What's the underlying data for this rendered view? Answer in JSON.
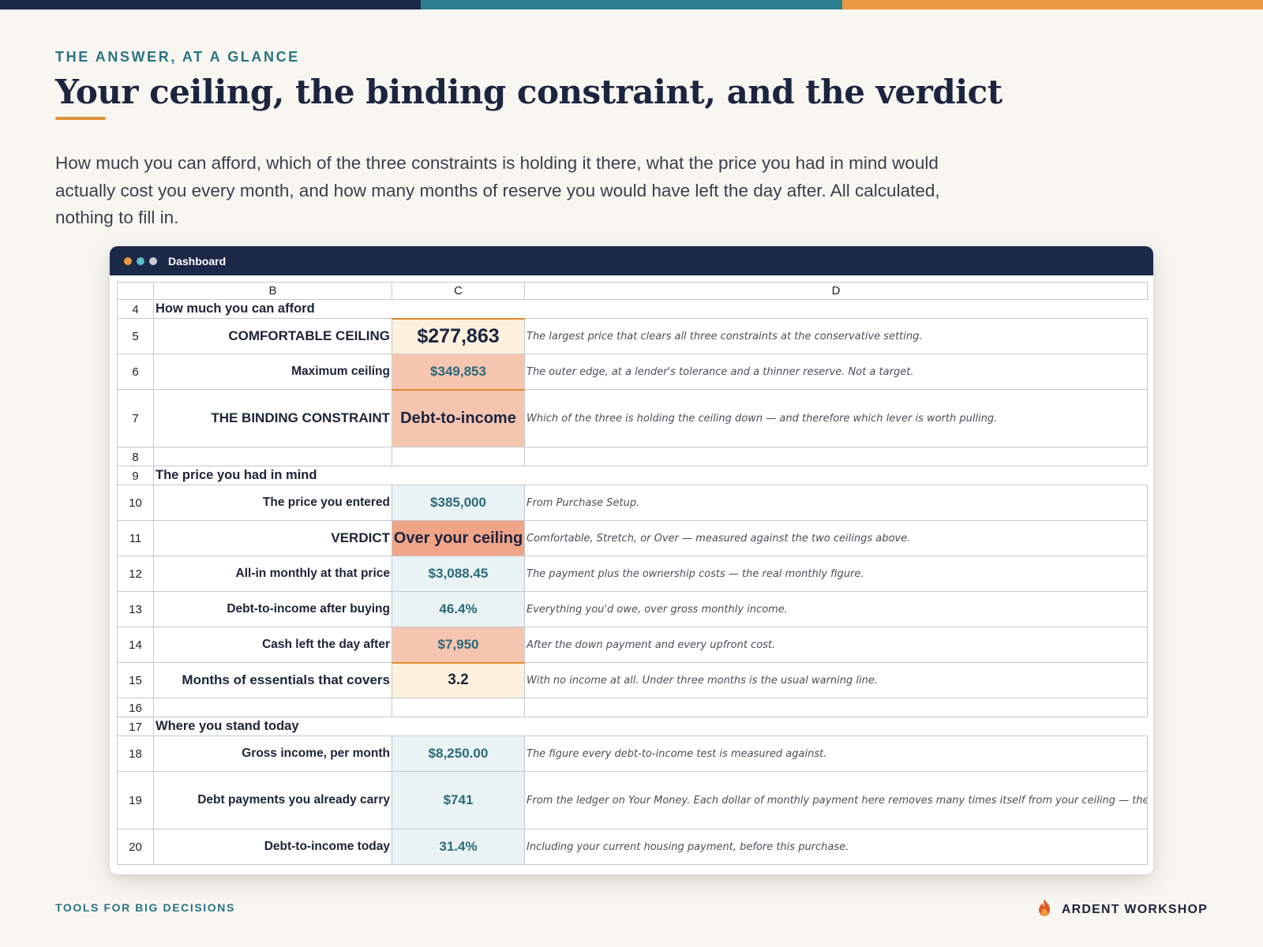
{
  "header": {
    "eyebrow": "THE ANSWER, AT A GLANCE",
    "title": "Your ceiling, the binding constraint, and the verdict",
    "intro": "How much you can afford, which of the three constraints is holding it there, what the price you had in mind would actually cost you every month, and how many months of reserve you would have left the day after. All calculated, nothing to fill in."
  },
  "window": {
    "title": "Dashboard",
    "dot_colors": [
      "#ec9a3f",
      "#5bbfc9",
      "#c9ccd6"
    ]
  },
  "sheet": {
    "columns": [
      "B",
      "C",
      "D"
    ],
    "rows": {
      "r4": {
        "num": "4",
        "section": "How much you can afford"
      },
      "r5": {
        "num": "5",
        "label": "COMFORTABLE CEILING",
        "value": "$277,863",
        "note": "The largest price that clears all three constraints at the conservative setting."
      },
      "r6": {
        "num": "6",
        "label": "Maximum ceiling",
        "value": "$349,853",
        "note": "The outer edge, at a lender's tolerance and a thinner reserve. Not a target."
      },
      "r7": {
        "num": "7",
        "label": "THE BINDING CONSTRAINT",
        "value": "Debt-to-income",
        "note": "Which of the three is holding the ceiling down — and therefore which lever is worth pulling."
      },
      "r8": {
        "num": "8"
      },
      "r9": {
        "num": "9",
        "section": "The price you had in mind"
      },
      "r10": {
        "num": "10",
        "label": "The price you entered",
        "value": "$385,000",
        "note": "From Purchase Setup."
      },
      "r11": {
        "num": "11",
        "label": "VERDICT",
        "value": "Over your ceiling",
        "note": "Comfortable, Stretch, or Over — measured against the two ceilings above."
      },
      "r12": {
        "num": "12",
        "label": "All-in monthly at that price",
        "value": "$3,088.45",
        "note": "The payment plus the ownership costs — the real monthly figure."
      },
      "r13": {
        "num": "13",
        "label": "Debt-to-income after buying",
        "value": "46.4%",
        "note": "Everything you'd owe, over gross monthly income."
      },
      "r14": {
        "num": "14",
        "label": "Cash left the day after",
        "value": "$7,950",
        "note": "After the down payment and every upfront cost."
      },
      "r15": {
        "num": "15",
        "label": "Months of essentials that covers",
        "value": "3.2",
        "note": "With no income at all. Under three months is the usual warning line."
      },
      "r16": {
        "num": "16"
      },
      "r17": {
        "num": "17",
        "section": "Where you stand today"
      },
      "r18": {
        "num": "18",
        "label": "Gross income, per month",
        "value": "$8,250.00",
        "note": "The figure every debt-to-income test is measured against."
      },
      "r19": {
        "num": "19",
        "label": "Debt payments you already carry",
        "value": "$741",
        "note": "From the ledger on Your Money. Each dollar of monthly payment here removes many times itself from your ceiling — the Wait & Se"
      },
      "r20": {
        "num": "20",
        "label": "Debt-to-income today",
        "value": "31.4%",
        "note": "Including your current housing payment, before this purchase."
      }
    }
  },
  "footer": {
    "left": "TOOLS FOR BIG DECISIONS",
    "brand": "ARDENT WORKSHOP",
    "brand_icon": "flame-icon"
  }
}
